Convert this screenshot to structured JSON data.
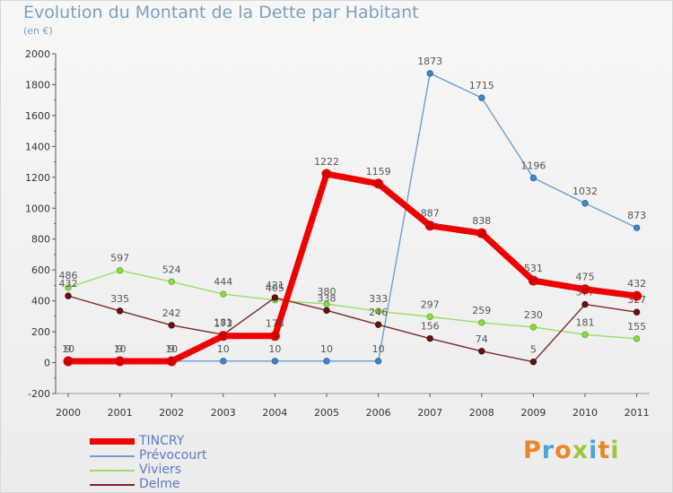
{
  "header": {
    "title": "Evolution du Montant de la Dette par Habitant",
    "subtitle": "(en €)"
  },
  "logo": {
    "text": "Proxiti",
    "colors": [
      "#e8862a",
      "#4aa3df",
      "#e8862a",
      "#9ac93c",
      "#4aa3df",
      "#e8862a",
      "#9ac93c"
    ]
  },
  "chart_data": {
    "type": "line",
    "x": [
      "2000",
      "2001",
      "2002",
      "2003",
      "2004",
      "2005",
      "2006",
      "2007",
      "2008",
      "2009",
      "2010",
      "2011"
    ],
    "ylim": [
      -200,
      2000
    ],
    "yticks": [
      "-200",
      "0",
      "200",
      "400",
      "600",
      "800",
      "1000",
      "1200",
      "1400",
      "1600",
      "1800",
      "2000"
    ],
    "grid": false,
    "legend_position": "bottom-left",
    "series": [
      {
        "name": "Prévocourt",
        "color": "#6a9fd0",
        "values": [
          10,
          10,
          10,
          10,
          10,
          10,
          10,
          1873,
          1715,
          1196,
          1032,
          873
        ]
      },
      {
        "name": "Viviers",
        "color": "#99dd66",
        "values": [
          486,
          597,
          524,
          444,
          405,
          380,
          333,
          297,
          259,
          230,
          181,
          155
        ]
      },
      {
        "name": "Delme",
        "color": "#7a2a2a",
        "values": [
          432,
          335,
          242,
          181,
          421,
          338,
          246,
          156,
          74,
          5,
          377,
          327
        ]
      },
      {
        "name": "TINCRY",
        "color": "#ee0000",
        "values": [
          9,
          9,
          9,
          173,
          173,
          1222,
          1159,
          887,
          838,
          531,
          475,
          432
        ]
      }
    ],
    "legend_order": [
      "TINCRY",
      "Prévocourt",
      "Viviers",
      "Delme"
    ]
  }
}
